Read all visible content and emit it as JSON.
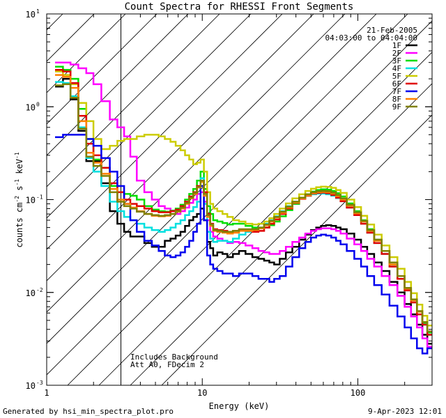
{
  "chart_data": {
    "type": "line",
    "title": "Count Spectra for RHESSI Front Segments",
    "xlabel": "Energy (keV)",
    "ylabel_parts": {
      "base": "counts cm",
      "sup1": "-2",
      "mid1": " s",
      "sup2": "-1",
      "mid2": " keV",
      "sup3": "-1"
    },
    "xscale": "log",
    "yscale": "log",
    "xlim": [
      1,
      300
    ],
    "ylim": [
      0.001,
      10
    ],
    "x_tick_labels": [
      {
        "value": 1,
        "label": "1"
      },
      {
        "value": 10,
        "label": "10"
      },
      {
        "value": 100,
        "label": "100"
      }
    ],
    "y_tick_labels": [
      {
        "value": 10,
        "base": "10",
        "exp": "1"
      },
      {
        "value": 1,
        "base": "10",
        "exp": "0"
      },
      {
        "value": 0.1,
        "base": "10",
        "exp": "-1"
      },
      {
        "value": 0.01,
        "base": "10",
        "exp": "-2"
      },
      {
        "value": 0.001,
        "base": "10",
        "exp": "-3"
      }
    ],
    "date": "21-Feb-2005",
    "time_range": "04:03:00 to 04:04:00",
    "hatched_region_max_keV": 3,
    "annotations": [
      "Includes Background",
      "Att A0, FDecim 2"
    ],
    "legend_position": "top-right",
    "energies": [
      1.2,
      1.35,
      1.5,
      1.7,
      1.9,
      2.1,
      2.4,
      2.7,
      3.0,
      3.3,
      3.6,
      4.0,
      4.5,
      5.0,
      5.5,
      6.0,
      6.5,
      7.0,
      7.5,
      8.0,
      8.5,
      9.0,
      9.5,
      10.0,
      10.5,
      11.0,
      11.5,
      12.0,
      13.0,
      14.0,
      15.0,
      16.5,
      18.0,
      20.0,
      22.0,
      24.0,
      26.0,
      28.0,
      30.0,
      33.0,
      36.0,
      40.0,
      44.0,
      48.0,
      52.0,
      56.0,
      60.0,
      65.0,
      70.0,
      75.0,
      80.0,
      90.0,
      100.0,
      110.0,
      120.0,
      135.0,
      150.0,
      170.0,
      190.0,
      210.0,
      230.0,
      250.0,
      270.0,
      290.0
    ],
    "series": [
      {
        "name": "1F",
        "color": "#000000",
        "values": [
          1.65,
          2.0,
          1.2,
          0.55,
          0.26,
          0.26,
          0.15,
          0.075,
          0.055,
          0.045,
          0.04,
          0.04,
          0.034,
          0.031,
          0.031,
          0.036,
          0.038,
          0.041,
          0.045,
          0.052,
          0.06,
          0.065,
          0.07,
          0.08,
          0.06,
          0.035,
          0.03,
          0.025,
          0.027,
          0.026,
          0.024,
          0.026,
          0.028,
          0.026,
          0.024,
          0.023,
          0.022,
          0.021,
          0.02,
          0.023,
          0.027,
          0.031,
          0.037,
          0.042,
          0.047,
          0.05,
          0.052,
          0.053,
          0.052,
          0.05,
          0.048,
          0.043,
          0.037,
          0.031,
          0.026,
          0.021,
          0.017,
          0.013,
          0.01,
          0.0075,
          0.0058,
          0.0045,
          0.0035,
          0.0028
        ]
      },
      {
        "name": "2F",
        "color": "#ff00ff",
        "values": [
          3.0,
          3.0,
          2.85,
          2.6,
          2.3,
          1.75,
          1.15,
          0.73,
          0.6,
          0.48,
          0.29,
          0.16,
          0.12,
          0.1,
          0.085,
          0.08,
          0.075,
          0.07,
          0.075,
          0.082,
          0.092,
          0.1,
          0.115,
          0.12,
          0.095,
          0.06,
          0.045,
          0.04,
          0.038,
          0.036,
          0.034,
          0.035,
          0.034,
          0.032,
          0.03,
          0.028,
          0.027,
          0.026,
          0.026,
          0.028,
          0.031,
          0.035,
          0.039,
          0.043,
          0.046,
          0.048,
          0.049,
          0.049,
          0.048,
          0.046,
          0.043,
          0.038,
          0.033,
          0.028,
          0.023,
          0.019,
          0.015,
          0.012,
          0.0092,
          0.007,
          0.0055,
          0.0042,
          0.0032,
          0.0026
        ]
      },
      {
        "name": "3F",
        "color": "#00dd00",
        "values": [
          2.7,
          2.5,
          2.0,
          0.95,
          0.45,
          0.27,
          0.22,
          0.14,
          0.12,
          0.115,
          0.11,
          0.1,
          0.085,
          0.078,
          0.075,
          0.074,
          0.076,
          0.08,
          0.088,
          0.1,
          0.115,
          0.13,
          0.16,
          0.2,
          0.13,
          0.085,
          0.07,
          0.06,
          0.058,
          0.056,
          0.054,
          0.055,
          0.055,
          0.052,
          0.05,
          0.049,
          0.05,
          0.053,
          0.058,
          0.066,
          0.077,
          0.09,
          0.103,
          0.114,
          0.122,
          0.127,
          0.129,
          0.128,
          0.124,
          0.117,
          0.108,
          0.091,
          0.075,
          0.06,
          0.048,
          0.037,
          0.028,
          0.02,
          0.015,
          0.011,
          0.0082,
          0.0062,
          0.0047,
          0.0037
        ]
      },
      {
        "name": "4F",
        "color": "#00e0e0",
        "values": [
          1.85,
          1.8,
          1.3,
          0.6,
          0.28,
          0.2,
          0.14,
          0.095,
          0.075,
          0.065,
          0.06,
          0.055,
          0.05,
          0.047,
          0.045,
          0.047,
          0.05,
          0.055,
          0.06,
          0.068,
          0.075,
          0.083,
          0.095,
          0.17,
          0.09,
          0.045,
          0.038,
          0.035,
          0.036,
          0.036,
          0.035,
          0.038,
          0.042,
          0.045,
          0.047,
          0.05,
          0.055,
          0.06,
          0.066,
          0.075,
          0.085,
          0.095,
          0.103,
          0.11,
          0.114,
          0.116,
          0.116,
          0.114,
          0.11,
          0.104,
          0.096,
          0.082,
          0.068,
          0.055,
          0.044,
          0.034,
          0.026,
          0.019,
          0.014,
          0.0105,
          0.0078,
          0.0058,
          0.0045,
          0.0035
        ]
      },
      {
        "name": "5F",
        "color": "#cccc00",
        "values": [
          2.4,
          2.2,
          1.75,
          1.1,
          0.7,
          0.45,
          0.35,
          0.38,
          0.43,
          0.45,
          0.45,
          0.48,
          0.5,
          0.5,
          0.48,
          0.45,
          0.42,
          0.38,
          0.34,
          0.3,
          0.27,
          0.24,
          0.25,
          0.27,
          0.2,
          0.12,
          0.09,
          0.08,
          0.075,
          0.07,
          0.065,
          0.06,
          0.058,
          0.055,
          0.054,
          0.055,
          0.058,
          0.063,
          0.07,
          0.08,
          0.091,
          0.103,
          0.114,
          0.124,
          0.131,
          0.136,
          0.138,
          0.137,
          0.134,
          0.127,
          0.118,
          0.1,
          0.083,
          0.067,
          0.054,
          0.042,
          0.032,
          0.024,
          0.018,
          0.013,
          0.0098,
          0.0074,
          0.0056,
          0.0044
        ]
      },
      {
        "name": "6F",
        "color": "#e00000",
        "values": [
          2.5,
          2.4,
          1.8,
          0.8,
          0.4,
          0.3,
          0.22,
          0.15,
          0.12,
          0.1,
          0.09,
          0.085,
          0.08,
          0.075,
          0.073,
          0.073,
          0.075,
          0.078,
          0.085,
          0.095,
          0.108,
          0.12,
          0.14,
          0.16,
          0.12,
          0.07,
          0.055,
          0.048,
          0.047,
          0.046,
          0.045,
          0.046,
          0.047,
          0.046,
          0.045,
          0.046,
          0.05,
          0.055,
          0.061,
          0.07,
          0.08,
          0.092,
          0.102,
          0.11,
          0.116,
          0.118,
          0.119,
          0.117,
          0.112,
          0.105,
          0.096,
          0.082,
          0.068,
          0.055,
          0.044,
          0.034,
          0.026,
          0.019,
          0.014,
          0.0105,
          0.0078,
          0.0058,
          0.0045,
          0.0035
        ]
      },
      {
        "name": "7F",
        "color": "#0000ee",
        "values": [
          0.47,
          0.5,
          0.5,
          0.5,
          0.45,
          0.38,
          0.28,
          0.2,
          0.14,
          0.09,
          0.06,
          0.045,
          0.036,
          0.032,
          0.028,
          0.025,
          0.024,
          0.025,
          0.027,
          0.031,
          0.036,
          0.045,
          0.055,
          0.14,
          0.06,
          0.025,
          0.02,
          0.018,
          0.017,
          0.016,
          0.016,
          0.015,
          0.016,
          0.016,
          0.015,
          0.014,
          0.014,
          0.013,
          0.014,
          0.015,
          0.019,
          0.024,
          0.03,
          0.035,
          0.039,
          0.041,
          0.042,
          0.041,
          0.039,
          0.036,
          0.033,
          0.028,
          0.023,
          0.019,
          0.015,
          0.012,
          0.0095,
          0.0072,
          0.0055,
          0.0042,
          0.0032,
          0.0025,
          0.0022,
          0.0025
        ]
      },
      {
        "name": "8F",
        "color": "#ff8000",
        "values": [
          2.2,
          2.1,
          1.6,
          0.7,
          0.32,
          0.25,
          0.19,
          0.13,
          0.1,
          0.09,
          0.082,
          0.075,
          0.07,
          0.067,
          0.066,
          0.067,
          0.07,
          0.074,
          0.08,
          0.09,
          0.103,
          0.115,
          0.135,
          0.155,
          0.11,
          0.065,
          0.052,
          0.046,
          0.045,
          0.044,
          0.043,
          0.044,
          0.046,
          0.046,
          0.047,
          0.049,
          0.053,
          0.058,
          0.064,
          0.072,
          0.082,
          0.093,
          0.103,
          0.111,
          0.117,
          0.12,
          0.121,
          0.12,
          0.116,
          0.109,
          0.1,
          0.086,
          0.071,
          0.058,
          0.046,
          0.036,
          0.028,
          0.02,
          0.015,
          0.011,
          0.0082,
          0.0062,
          0.0048,
          0.0038
        ]
      },
      {
        "name": "9F",
        "color": "#808000",
        "values": [
          1.7,
          1.75,
          1.25,
          0.58,
          0.29,
          0.23,
          0.18,
          0.12,
          0.095,
          0.085,
          0.08,
          0.074,
          0.07,
          0.068,
          0.067,
          0.068,
          0.07,
          0.075,
          0.082,
          0.092,
          0.105,
          0.118,
          0.137,
          0.16,
          0.115,
          0.068,
          0.054,
          0.047,
          0.046,
          0.045,
          0.045,
          0.046,
          0.048,
          0.048,
          0.048,
          0.05,
          0.054,
          0.059,
          0.065,
          0.074,
          0.084,
          0.095,
          0.105,
          0.114,
          0.12,
          0.123,
          0.124,
          0.123,
          0.119,
          0.112,
          0.103,
          0.088,
          0.073,
          0.059,
          0.047,
          0.037,
          0.028,
          0.021,
          0.015,
          0.0112,
          0.0084,
          0.0063,
          0.0048,
          0.0038
        ]
      }
    ]
  },
  "footer": {
    "generated_by": "Generated by hsi_min_spectra_plot.pro",
    "timestamp": "9-Apr-2023 12:01"
  }
}
